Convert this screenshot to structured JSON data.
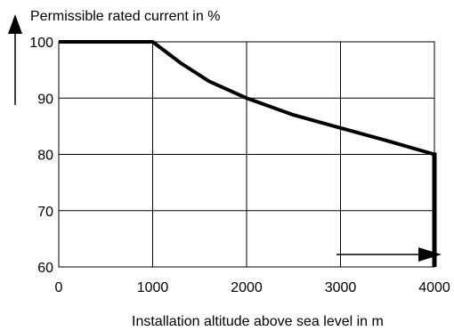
{
  "chart_data": {
    "type": "line",
    "ylabel": "Permissible rated current in %",
    "xlabel": "Installation altitude above sea level in m",
    "xlim": [
      0,
      4000
    ],
    "ylim": [
      60,
      100
    ],
    "xticks": [
      0,
      1000,
      2000,
      3000,
      4000
    ],
    "yticks": [
      60,
      70,
      80,
      90,
      100
    ],
    "grid": true,
    "series": [
      {
        "x": [
          0,
          1000,
          1300,
          1600,
          2000,
          2500,
          3000,
          3500,
          4000
        ],
        "y": [
          100,
          100,
          96.2,
          93.0,
          90,
          87,
          84.7,
          82.4,
          80
        ]
      }
    ],
    "drop_line": {
      "x": 4000,
      "from": 80,
      "to": 60
    },
    "colors": {
      "line": "#000000",
      "grid": "#000000"
    }
  }
}
